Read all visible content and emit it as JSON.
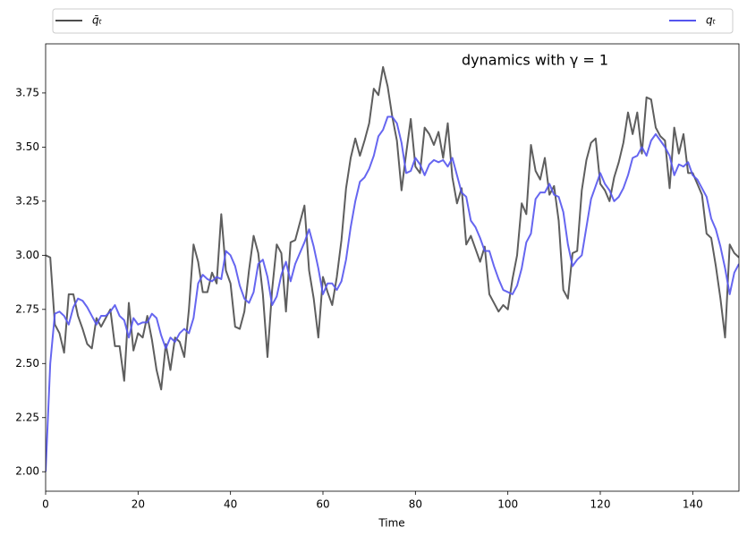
{
  "chart_data": {
    "type": "line",
    "annotation": "dynamics with γ = 1",
    "xlabel": "Time",
    "x": [
      0,
      1,
      2,
      3,
      4,
      5,
      6,
      7,
      8,
      9,
      10,
      11,
      12,
      13,
      14,
      15,
      16,
      17,
      18,
      19,
      20,
      21,
      22,
      23,
      24,
      25,
      26,
      27,
      28,
      29,
      30,
      31,
      32,
      33,
      34,
      35,
      36,
      37,
      38,
      39,
      40,
      41,
      42,
      43,
      44,
      45,
      46,
      47,
      48,
      49,
      50,
      51,
      52,
      53,
      54,
      55,
      56,
      57,
      58,
      59,
      60,
      61,
      62,
      63,
      64,
      65,
      66,
      67,
      68,
      69,
      70,
      71,
      72,
      73,
      74,
      75,
      76,
      77,
      78,
      79,
      80,
      81,
      82,
      83,
      84,
      85,
      86,
      87,
      88,
      89,
      90,
      91,
      92,
      93,
      94,
      95,
      96,
      97,
      98,
      99,
      100,
      101,
      102,
      103,
      104,
      105,
      106,
      107,
      108,
      109,
      110,
      111,
      112,
      113,
      114,
      115,
      116,
      117,
      118,
      119,
      120,
      121,
      122,
      123,
      124,
      125,
      126,
      127,
      128,
      129,
      130,
      131,
      132,
      133,
      134,
      135,
      136,
      137,
      138,
      139,
      140,
      141,
      142,
      143,
      144,
      145,
      146,
      147,
      148,
      149,
      150
    ],
    "series": [
      {
        "name": "q̄ₜ",
        "color": "#4d4d4d",
        "values": [
          3.0,
          2.99,
          2.68,
          2.64,
          2.55,
          2.82,
          2.82,
          2.72,
          2.66,
          2.59,
          2.57,
          2.71,
          2.67,
          2.71,
          2.75,
          2.58,
          2.58,
          2.42,
          2.78,
          2.56,
          2.64,
          2.62,
          2.72,
          2.61,
          2.47,
          2.38,
          2.59,
          2.47,
          2.62,
          2.6,
          2.53,
          2.75,
          3.05,
          2.97,
          2.83,
          2.83,
          2.92,
          2.87,
          3.19,
          2.93,
          2.87,
          2.67,
          2.66,
          2.74,
          2.93,
          3.09,
          3.01,
          2.82,
          2.53,
          2.84,
          3.05,
          3.01,
          2.74,
          3.06,
          3.07,
          3.15,
          3.23,
          2.93,
          2.8,
          2.62,
          2.9,
          2.83,
          2.77,
          2.9,
          3.07,
          3.31,
          3.45,
          3.54,
          3.46,
          3.53,
          3.61,
          3.77,
          3.74,
          3.87,
          3.78,
          3.64,
          3.53,
          3.3,
          3.47,
          3.63,
          3.41,
          3.38,
          3.59,
          3.56,
          3.51,
          3.57,
          3.45,
          3.61,
          3.36,
          3.24,
          3.31,
          3.05,
          3.09,
          3.03,
          2.97,
          3.04,
          2.82,
          2.78,
          2.74,
          2.77,
          2.75,
          2.89,
          3.0,
          3.24,
          3.19,
          3.51,
          3.39,
          3.35,
          3.45,
          3.28,
          3.32,
          3.16,
          2.84,
          2.8,
          3.01,
          3.02,
          3.3,
          3.44,
          3.52,
          3.54,
          3.33,
          3.3,
          3.25,
          3.36,
          3.43,
          3.52,
          3.66,
          3.56,
          3.66,
          3.47,
          3.73,
          3.72,
          3.59,
          3.55,
          3.53,
          3.31,
          3.59,
          3.47,
          3.56,
          3.38,
          3.38,
          3.33,
          3.28,
          3.1,
          3.08,
          2.95,
          2.8,
          2.62,
          3.05,
          3.01,
          2.99
        ]
      },
      {
        "name": "qₜ",
        "color": "#5555ee",
        "values": [
          2.0,
          2.5,
          2.73,
          2.74,
          2.72,
          2.68,
          2.76,
          2.8,
          2.79,
          2.76,
          2.72,
          2.68,
          2.72,
          2.72,
          2.74,
          2.77,
          2.72,
          2.7,
          2.62,
          2.71,
          2.68,
          2.69,
          2.69,
          2.73,
          2.71,
          2.63,
          2.57,
          2.62,
          2.6,
          2.64,
          2.66,
          2.64,
          2.71,
          2.87,
          2.91,
          2.89,
          2.88,
          2.9,
          2.89,
          3.02,
          3.0,
          2.95,
          2.86,
          2.8,
          2.78,
          2.83,
          2.96,
          2.98,
          2.9,
          2.77,
          2.81,
          2.91,
          2.97,
          2.88,
          2.96,
          3.01,
          3.06,
          3.12,
          3.04,
          2.94,
          2.82,
          2.87,
          2.87,
          2.84,
          2.88,
          2.98,
          3.13,
          3.25,
          3.34,
          3.36,
          3.4,
          3.46,
          3.55,
          3.58,
          3.64,
          3.64,
          3.61,
          3.52,
          3.38,
          3.39,
          3.45,
          3.42,
          3.37,
          3.42,
          3.44,
          3.43,
          3.44,
          3.41,
          3.45,
          3.37,
          3.29,
          3.27,
          3.16,
          3.13,
          3.08,
          3.02,
          3.02,
          2.95,
          2.89,
          2.84,
          2.83,
          2.82,
          2.86,
          2.94,
          3.06,
          3.1,
          3.26,
          3.29,
          3.29,
          3.33,
          3.28,
          3.27,
          3.2,
          3.05,
          2.95,
          2.98,
          3.0,
          3.13,
          3.26,
          3.32,
          3.38,
          3.33,
          3.3,
          3.25,
          3.27,
          3.31,
          3.37,
          3.45,
          3.46,
          3.5,
          3.46,
          3.53,
          3.56,
          3.53,
          3.5,
          3.46,
          3.37,
          3.42,
          3.41,
          3.43,
          3.37,
          3.35,
          3.31,
          3.27,
          3.17,
          3.12,
          3.04,
          2.94,
          2.82,
          2.92,
          2.96
        ]
      }
    ],
    "xlim": [
      0,
      150
    ],
    "xticks": [
      0,
      20,
      40,
      60,
      80,
      100,
      120,
      140
    ],
    "ylim": [
      1.91,
      3.977
    ],
    "yticks": [
      {
        "value": 2,
        "label": "2.00"
      },
      {
        "value": 2.25,
        "label": "2.25"
      },
      {
        "value": 2.5,
        "label": "2.50"
      },
      {
        "value": 2.75,
        "label": "2.75"
      },
      {
        "value": 3,
        "label": "3.00"
      },
      {
        "value": 3.25,
        "label": "3.25"
      },
      {
        "value": 3.5,
        "label": "3.50"
      },
      {
        "value": 3.75,
        "label": "3.75"
      }
    ],
    "legend": "top"
  }
}
